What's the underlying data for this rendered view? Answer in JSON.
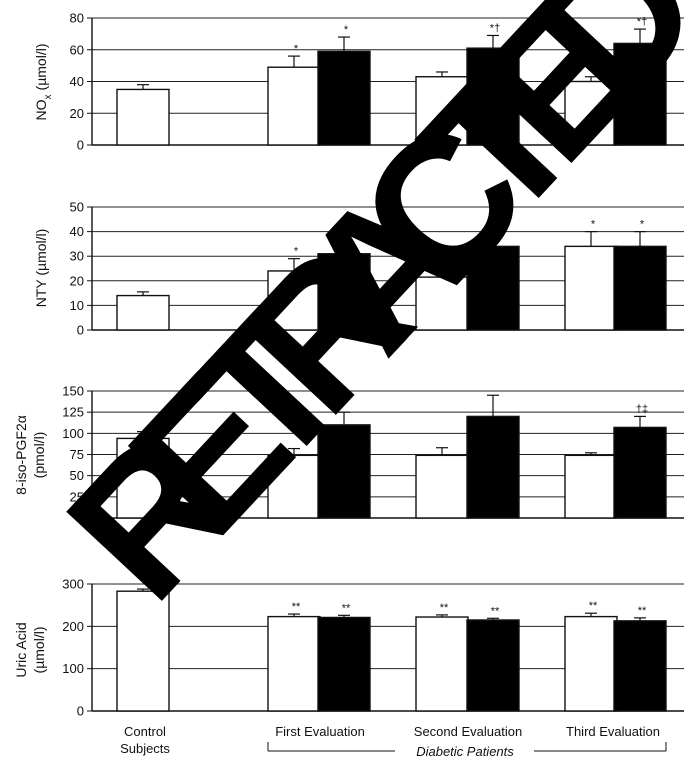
{
  "chart_data": [
    {
      "type": "bar",
      "ylabel": "NOx (µmol/l)",
      "ylabel_main": "NO",
      "ylabel_sub": "x",
      "ylabel_unit": "(µmol/l)",
      "ylim": [
        0,
        80
      ],
      "yticks": [
        "0",
        "20",
        "40",
        "60",
        "80"
      ],
      "grid": true,
      "bars": [
        {
          "group": "Control Subjects",
          "fill": "white",
          "value": 35,
          "err": 3,
          "mark": ""
        },
        {
          "group": "First Evaluation",
          "fill": "white",
          "value": 49,
          "err": 7,
          "mark": "*"
        },
        {
          "group": "First Evaluation",
          "fill": "black",
          "value": 59,
          "err": 9,
          "mark": "*"
        },
        {
          "group": "Second Evaluation",
          "fill": "white",
          "value": 43,
          "err": 3,
          "mark": ""
        },
        {
          "group": "Second Evaluation",
          "fill": "black",
          "value": 61,
          "err": 8,
          "mark": "*†"
        },
        {
          "group": "Third Evaluation",
          "fill": "white",
          "value": 40,
          "err": 3,
          "mark": ""
        },
        {
          "group": "Third Evaluation",
          "fill": "black",
          "value": 64,
          "err": 9,
          "mark": "*†"
        }
      ]
    },
    {
      "type": "bar",
      "ylabel": "NTY (µmol/l)",
      "ylim": [
        0,
        50
      ],
      "yticks": [
        "0",
        "10",
        "20",
        "30",
        "40",
        "50"
      ],
      "grid": true,
      "bars": [
        {
          "group": "Control Subjects",
          "fill": "white",
          "value": 14,
          "err": 1.5,
          "mark": ""
        },
        {
          "group": "First Evaluation",
          "fill": "white",
          "value": 24,
          "err": 5,
          "mark": "*"
        },
        {
          "group": "First Evaluation",
          "fill": "black",
          "value": 31,
          "err": 7,
          "mark": "*"
        },
        {
          "group": "Second Evaluation",
          "fill": "white",
          "value": 21.5,
          "err": 3.5,
          "mark": "*"
        },
        {
          "group": "Second Evaluation",
          "fill": "black",
          "value": 34,
          "err": 7,
          "mark": "*"
        },
        {
          "group": "Third Evaluation",
          "fill": "white",
          "value": 34,
          "err": 6,
          "mark": "*"
        },
        {
          "group": "Third Evaluation",
          "fill": "black",
          "value": 34,
          "err": 6,
          "mark": "*"
        }
      ]
    },
    {
      "type": "bar",
      "ylabel": "8-iso-PGF2α (pmol/l)",
      "ylabel_line1": "8-iso-PGF2α",
      "ylabel_line2": "(pmol/l)",
      "ylim": [
        0,
        150
      ],
      "yticks": [
        "0",
        "25",
        "50",
        "75",
        "100",
        "125",
        "150"
      ],
      "grid": true,
      "bars": [
        {
          "group": "Control Subjects",
          "fill": "white",
          "value": 94,
          "err": 8,
          "mark": ""
        },
        {
          "group": "First Evaluation",
          "fill": "white",
          "value": 74,
          "err": 8,
          "mark": ""
        },
        {
          "group": "First Evaluation",
          "fill": "black",
          "value": 110,
          "err": 15,
          "mark": ""
        },
        {
          "group": "Second Evaluation",
          "fill": "white",
          "value": 74,
          "err": 9,
          "mark": ""
        },
        {
          "group": "Second Evaluation",
          "fill": "black",
          "value": 120,
          "err": 25,
          "mark": ""
        },
        {
          "group": "Third Evaluation",
          "fill": "white",
          "value": 74,
          "err": 3,
          "mark": ""
        },
        {
          "group": "Third Evaluation",
          "fill": "black",
          "value": 107,
          "err": 13,
          "mark": "†‡"
        }
      ]
    },
    {
      "type": "bar",
      "ylabel": "Uric Acid (µmol/l)",
      "ylabel_line1": "Uric Acid",
      "ylabel_line2": "(µmol/l)",
      "ylim": [
        0,
        300
      ],
      "yticks": [
        "0",
        "100",
        "200",
        "300"
      ],
      "grid": true,
      "bars": [
        {
          "group": "Control Subjects",
          "fill": "white",
          "value": 283,
          "err": 5,
          "mark": ""
        },
        {
          "group": "First Evaluation",
          "fill": "white",
          "value": 223,
          "err": 6,
          "mark": "**"
        },
        {
          "group": "First Evaluation",
          "fill": "black",
          "value": 221,
          "err": 5,
          "mark": "**"
        },
        {
          "group": "Second Evaluation",
          "fill": "white",
          "value": 222,
          "err": 5,
          "mark": "**"
        },
        {
          "group": "Second Evaluation",
          "fill": "black",
          "value": 215,
          "err": 4,
          "mark": "**"
        },
        {
          "group": "Third Evaluation",
          "fill": "white",
          "value": 223,
          "err": 8,
          "mark": "**"
        },
        {
          "group": "Third Evaluation",
          "fill": "black",
          "value": 213,
          "err": 7,
          "mark": "**"
        }
      ]
    }
  ],
  "x_labels": {
    "control_line1": "Control",
    "control_line2": "Subjects",
    "first": "First Evaluation",
    "second": "Second Evaluation",
    "third": "Third Evaluation",
    "bracket": "Diabetic Patients"
  },
  "watermark": {
    "text": "RETRACTED",
    "color": "#000000"
  }
}
